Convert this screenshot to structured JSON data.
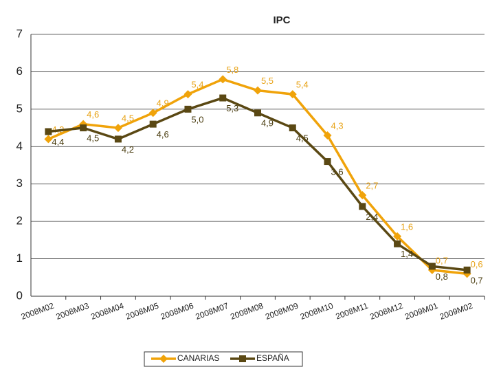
{
  "chart_data": {
    "type": "line",
    "title": "IPC",
    "categories": [
      "2008M02",
      "2008M03",
      "2008M04",
      "2008M05",
      "2008M06",
      "2008M07",
      "2008M08",
      "2008M09",
      "2008M10",
      "2008M11",
      "2008M12",
      "2009M01",
      "2009M02"
    ],
    "series": [
      {
        "name": "CANARIAS",
        "color": "#f0a30a",
        "values": [
          4.2,
          4.6,
          4.5,
          4.9,
          5.4,
          5.8,
          5.5,
          5.4,
          4.3,
          2.7,
          1.6,
          0.7,
          0.6
        ],
        "value_labels": [
          "4,2",
          "4,6",
          "4,5",
          "4,9",
          "5,4",
          "5,8",
          "5,5",
          "5,4",
          "4,3",
          "2,7",
          "1,6",
          "0,7",
          "0,6"
        ]
      },
      {
        "name": "ESPAÑA",
        "color": "#5a4813",
        "values": [
          4.4,
          4.5,
          4.2,
          4.6,
          5.0,
          5.3,
          4.9,
          4.5,
          3.6,
          2.4,
          1.4,
          0.8,
          0.7
        ],
        "value_labels": [
          "4,4",
          "4,5",
          "4,2",
          "4,6",
          "5,0",
          "5,3",
          "4,9",
          "4,5",
          "3,6",
          "2,4",
          "1,4",
          "0,8",
          "0,7"
        ]
      }
    ],
    "ylim": [
      0,
      7
    ],
    "yticks": [
      0,
      1,
      2,
      3,
      4,
      5,
      6,
      7
    ],
    "grid": true,
    "legend": "bottom"
  }
}
